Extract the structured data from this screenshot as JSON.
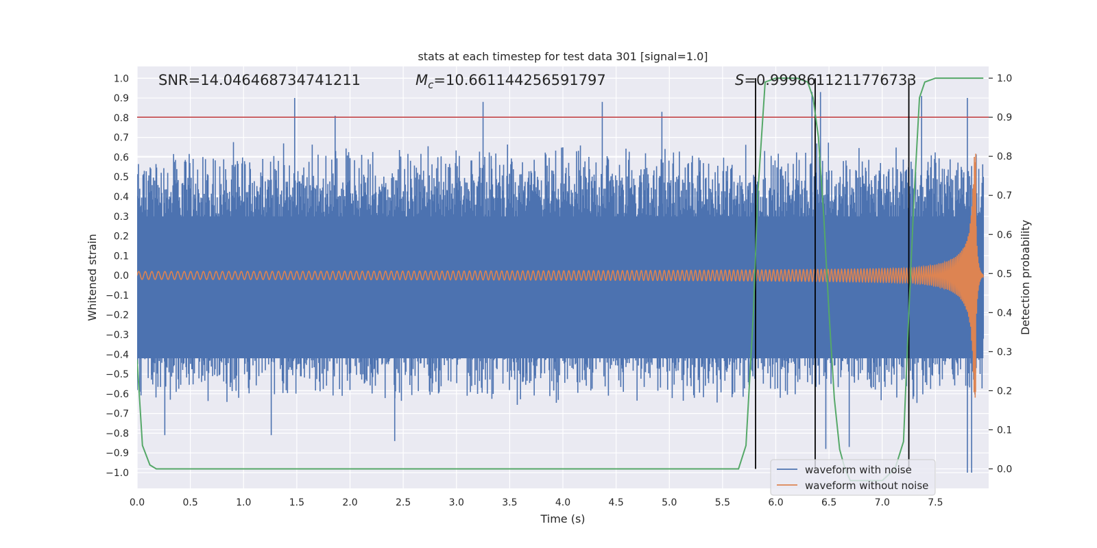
{
  "chart_data": {
    "type": "line",
    "title": "stats at each timestep for test data 301 [signal=1.0]",
    "xlabel": "Time (s)",
    "ylabel_left": "Whitened strain",
    "ylabel_right": "Detection probability",
    "xlim": [
      0.0,
      8.0
    ],
    "ylim_left": [
      -1.08,
      1.06
    ],
    "ylim_right": [
      -0.05,
      1.03
    ],
    "x_ticks": [
      0.0,
      0.5,
      1.0,
      1.5,
      2.0,
      2.5,
      3.0,
      3.5,
      4.0,
      4.5,
      5.0,
      5.5,
      6.0,
      6.5,
      7.0,
      7.5
    ],
    "y_ticks_left": [
      1.0,
      0.9,
      0.8,
      0.7,
      0.6,
      0.5,
      0.4,
      0.3,
      0.2,
      0.1,
      0.0,
      -0.1,
      -0.2,
      -0.3,
      -0.4,
      -0.5,
      -0.6,
      -0.7,
      -0.8,
      -0.9,
      -1.0
    ],
    "y_ticks_right": [
      1.0,
      0.9,
      0.8,
      0.7,
      0.6,
      0.5,
      0.4,
      0.3,
      0.2,
      0.1,
      0.0
    ],
    "annotations": {
      "snr": "SNR=14.046468734741211",
      "mc_symbol": "M",
      "mc_subscript": "c",
      "mc_value": "=10.661144256591797",
      "s_symbol": "S",
      "s_value": "=0.9998611211776733"
    },
    "threshold": {
      "axis": "right",
      "value": 0.9,
      "color": "#c44e52"
    },
    "vertical_lines_x": [
      5.81,
      6.37,
      7.25
    ],
    "spike_peaks": [
      {
        "x": 1.48,
        "y": 0.9
      },
      {
        "x": 1.86,
        "y": 0.81
      },
      {
        "x": 3.25,
        "y": 0.88
      },
      {
        "x": 4.37,
        "y": 0.88
      },
      {
        "x": 4.93,
        "y": 0.83
      },
      {
        "x": 6.34,
        "y": 0.93
      },
      {
        "x": 6.42,
        "y": 0.93
      },
      {
        "x": 7.37,
        "y": 0.91
      },
      {
        "x": 7.8,
        "y": 0.9
      },
      {
        "x": 0.26,
        "y": -0.81
      },
      {
        "x": 1.26,
        "y": -0.81
      },
      {
        "x": 2.42,
        "y": -0.84
      },
      {
        "x": 7.8,
        "y": -1.0
      },
      {
        "x": 7.84,
        "y": -1.0
      },
      {
        "x": 6.47,
        "y": -0.88
      },
      {
        "x": 6.69,
        "y": -0.87
      }
    ],
    "series": [
      {
        "name": "waveform with noise",
        "axis": "left",
        "color": "#4c72b0",
        "style": "dense-noise",
        "envelope_top": 0.52,
        "envelope_bottom": -0.5,
        "x_end": 7.95
      },
      {
        "name": "waveform without noise",
        "axis": "left",
        "color": "#dd8452",
        "style": "chirp",
        "amplitude_start": 0.02,
        "amplitude_peak": 0.62,
        "merger_x": 7.88,
        "x_end": 7.95
      },
      {
        "name": "detection probability",
        "axis": "right",
        "color": "#55a868",
        "style": "line",
        "x": [
          0.0,
          0.05,
          0.12,
          0.18,
          0.25,
          0.4,
          0.5,
          0.6,
          1.0,
          2.0,
          3.0,
          3.5,
          4.0,
          5.0,
          5.5,
          5.65,
          5.72,
          5.79,
          5.83,
          5.9,
          6.0,
          6.1,
          6.2,
          6.3,
          6.35,
          6.4,
          6.45,
          6.5,
          6.55,
          6.6,
          6.65,
          6.7,
          6.9,
          7.0,
          7.12,
          7.2,
          7.25,
          7.3,
          7.35,
          7.4,
          7.5,
          7.95
        ],
        "y": [
          0.28,
          0.06,
          0.01,
          0.0,
          0.0,
          0.0,
          0.0,
          0.0,
          0.0,
          0.0,
          0.0,
          0.0,
          0.0,
          0.0,
          0.0,
          0.0,
          0.06,
          0.4,
          0.7,
          0.99,
          1.0,
          1.0,
          1.0,
          0.99,
          0.95,
          0.85,
          0.65,
          0.4,
          0.18,
          0.05,
          0.0,
          -0.03,
          -0.03,
          -0.03,
          0.0,
          0.07,
          0.4,
          0.7,
          0.95,
          0.99,
          1.0,
          1.0
        ]
      }
    ],
    "legend": {
      "position": "lower-right",
      "entries": [
        {
          "label": "waveform with noise",
          "color": "#4c72b0"
        },
        {
          "label": "waveform without noise",
          "color": "#dd8452"
        }
      ]
    },
    "grid": true
  }
}
